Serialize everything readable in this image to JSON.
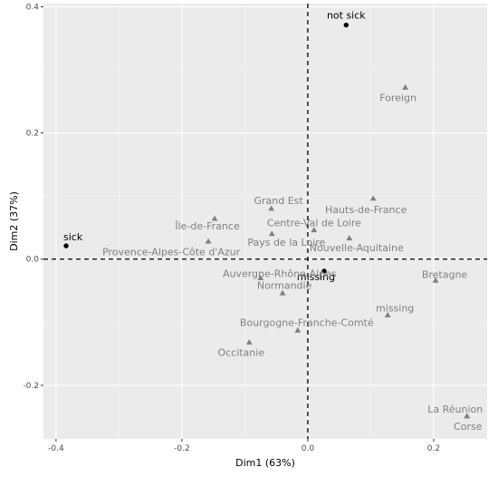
{
  "chart_data": {
    "type": "scatter",
    "xlabel": "Dim1 (63%)",
    "ylabel": "Dim2 (37%)",
    "xlim": [
      -0.42,
      0.285
    ],
    "ylim": [
      -0.285,
      0.405
    ],
    "x_ticks": [
      -0.4,
      -0.2,
      0.0,
      0.2
    ],
    "x_tick_labels": [
      "-0.4",
      "-0.2",
      "0.0",
      "0.2"
    ],
    "y_ticks": [
      -0.2,
      0.0,
      0.2,
      0.4
    ],
    "y_tick_labels": [
      "-0.2",
      "0.0",
      "0.2",
      "0.4"
    ],
    "reference_lines": {
      "x": 0,
      "y": 0
    },
    "grid": true,
    "series": [
      {
        "marker": "circle",
        "color": "#000000",
        "points": [
          {
            "label": "not sick",
            "x": 0.061,
            "y": 0.371
          },
          {
            "label": "sick",
            "x": -0.384,
            "y": 0.021
          },
          {
            "label": "missing",
            "x": 0.026,
            "y": -0.019
          }
        ]
      },
      {
        "marker": "triangle",
        "color": "#808080",
        "points": [
          {
            "label": "Foreign",
            "x": 0.155,
            "y": 0.272
          },
          {
            "label": "Hauts-de-France",
            "x": 0.104,
            "y": 0.096
          },
          {
            "label": "Grand Est",
            "x": -0.058,
            "y": 0.08
          },
          {
            "label": "Île-de-France",
            "x": -0.148,
            "y": 0.064
          },
          {
            "label": "Centre-Val de Loire",
            "x": 0.01,
            "y": 0.046
          },
          {
            "label": "Nouvelle-Aquitaine",
            "x": 0.066,
            "y": 0.033
          },
          {
            "label": "Pays de la Loire",
            "x": -0.057,
            "y": 0.04
          },
          {
            "label": "Provence-Alpes-Côte d'Azur",
            "x": -0.158,
            "y": 0.028
          },
          {
            "label": "Auvergne-Rhône-Alpes",
            "x": -0.075,
            "y": -0.03
          },
          {
            "label": "Normandie",
            "x": -0.04,
            "y": -0.054
          },
          {
            "label": "Bretagne",
            "x": 0.203,
            "y": -0.034
          },
          {
            "label": "missing",
            "x": 0.127,
            "y": -0.089
          },
          {
            "label": "Bourgogne-Franche-Comté",
            "x": -0.016,
            "y": -0.113
          },
          {
            "label": "Occitanie",
            "x": -0.093,
            "y": -0.132
          },
          {
            "label": "La Réunion",
            "x": 0.253,
            "y": -0.249
          },
          {
            "label": "Corse",
            "x": 0.253,
            "y": -0.249
          }
        ]
      }
    ]
  }
}
